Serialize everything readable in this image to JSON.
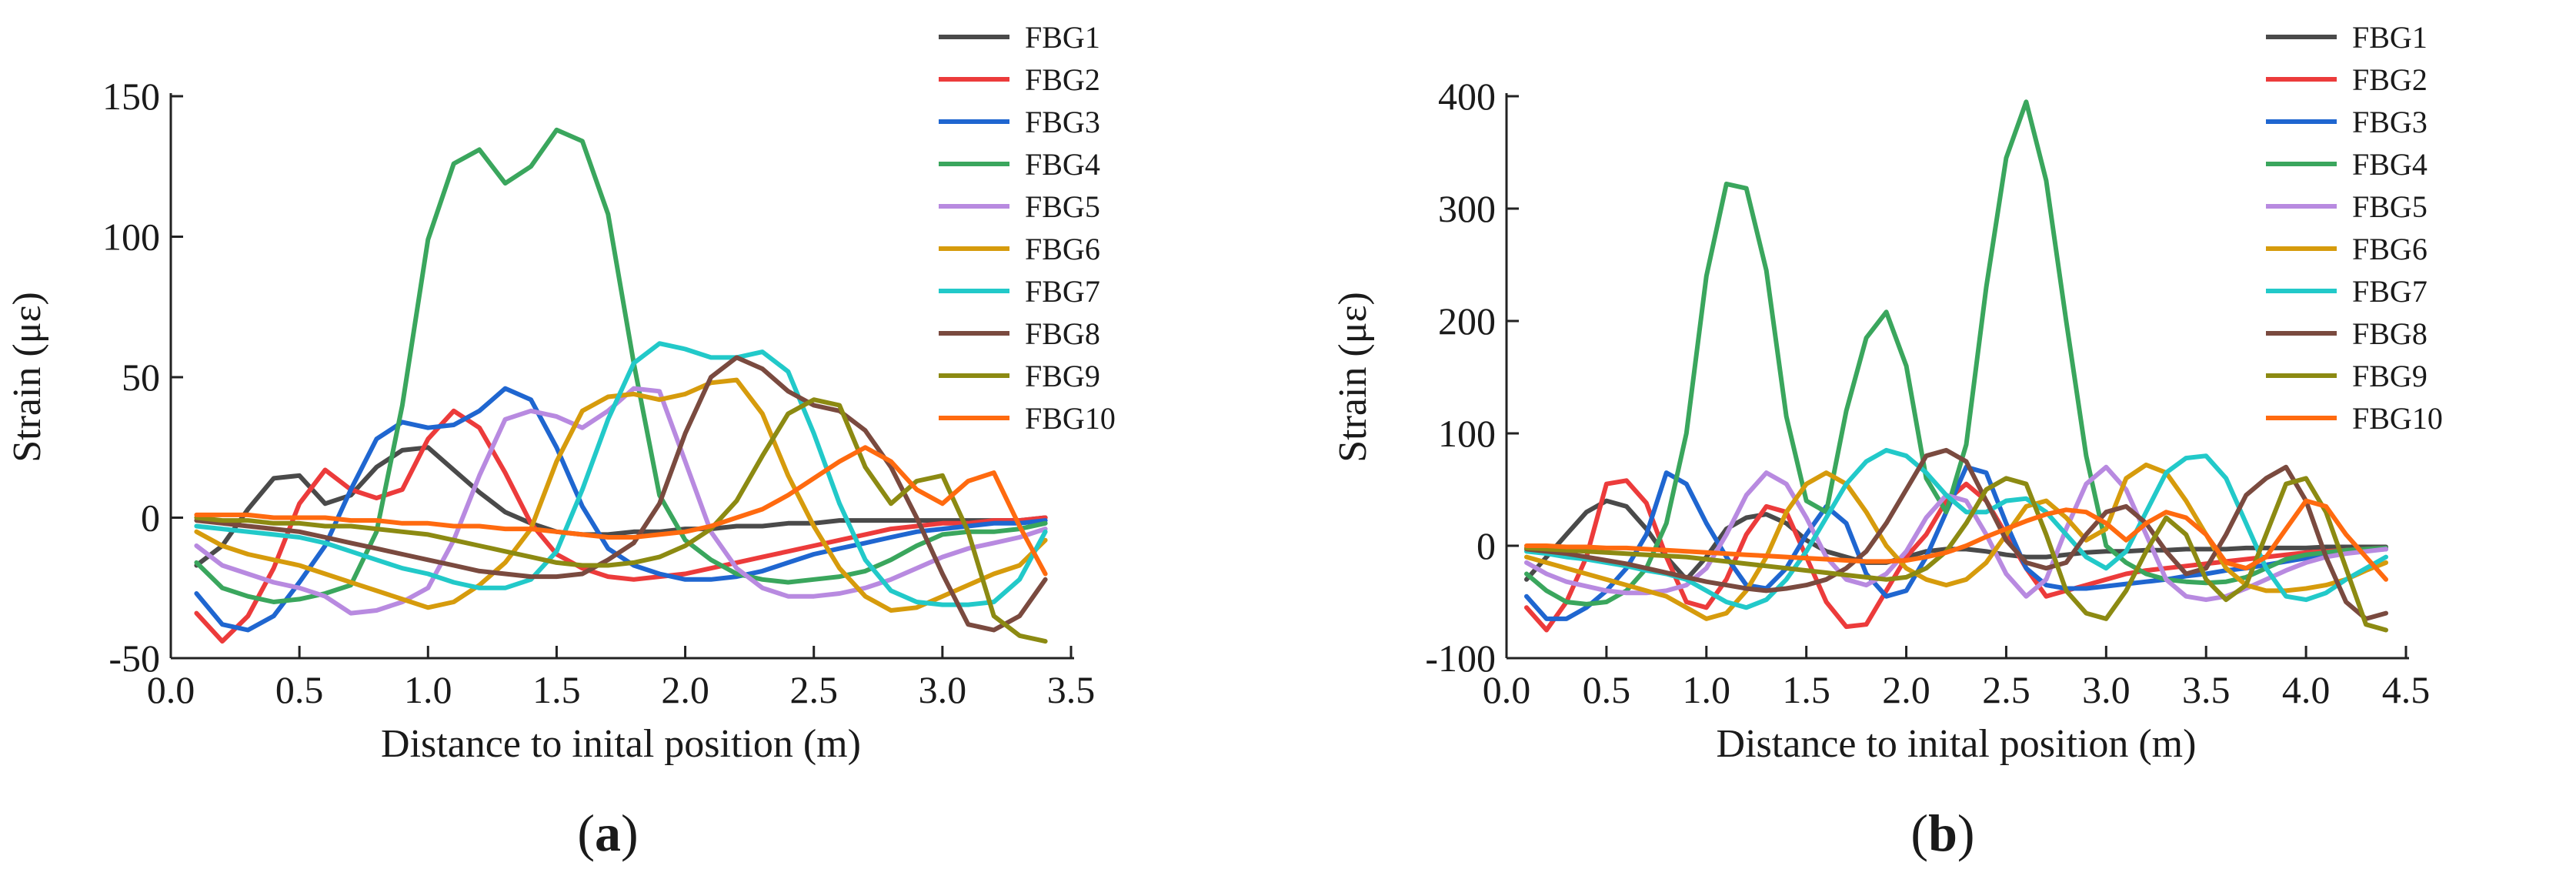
{
  "series_colors": {
    "FBG1": "#4a4a4a",
    "FBG2": "#ec3b3b",
    "FBG3": "#1f66d0",
    "FBG4": "#3aa65d",
    "FBG5": "#b88ae0",
    "FBG6": "#d69b0c",
    "FBG7": "#22c9c9",
    "FBG8": "#7a4a3f",
    "FBG9": "#8c8a12",
    "FBG10": "#ff6a0f"
  },
  "chart_data": [
    {
      "type": "line",
      "panel_label": "(a)",
      "panel_letter": "a",
      "title": "",
      "xlabel": "Distance to inital position (m)",
      "ylabel": "Strain (με)",
      "xlim": [
        0.0,
        3.5
      ],
      "ylim": [
        -50,
        150
      ],
      "xticks": [
        "0.0",
        "0.5",
        "1.0",
        "1.5",
        "2.0",
        "2.5",
        "3.0",
        "3.5"
      ],
      "yticks": [
        "-50",
        "0",
        "50",
        "100",
        "150"
      ],
      "grid": false,
      "legend_position": "top-right outside",
      "x": [
        0.1,
        0.2,
        0.3,
        0.4,
        0.5,
        0.6,
        0.7,
        0.8,
        0.9,
        1.0,
        1.1,
        1.2,
        1.3,
        1.4,
        1.5,
        1.6,
        1.7,
        1.8,
        1.9,
        2.0,
        2.1,
        2.2,
        2.3,
        2.4,
        2.5,
        2.6,
        2.7,
        2.8,
        2.9,
        3.0,
        3.1,
        3.2,
        3.3,
        3.4
      ],
      "series": [
        {
          "name": "FBG1",
          "values": [
            -17,
            -10,
            3,
            14,
            15,
            5,
            8,
            18,
            24,
            25,
            17,
            9,
            2,
            -2,
            -5,
            -6,
            -6,
            -5,
            -5,
            -4,
            -4,
            -3,
            -3,
            -2,
            -2,
            -1,
            -1,
            -1,
            -1,
            -1,
            -1,
            -1,
            -1,
            0
          ]
        },
        {
          "name": "FBG2",
          "values": [
            -34,
            -44,
            -35,
            -18,
            5,
            17,
            10,
            7,
            10,
            28,
            38,
            32,
            16,
            -2,
            -13,
            -18,
            -21,
            -22,
            -21,
            -20,
            -18,
            -16,
            -14,
            -12,
            -10,
            -8,
            -6,
            -4,
            -3,
            -2,
            -2,
            -1,
            -1,
            0
          ]
        },
        {
          "name": "FBG3",
          "values": [
            -27,
            -38,
            -40,
            -35,
            -23,
            -10,
            10,
            28,
            34,
            32,
            33,
            38,
            46,
            42,
            25,
            4,
            -11,
            -17,
            -20,
            -22,
            -22,
            -21,
            -19,
            -16,
            -13,
            -11,
            -9,
            -7,
            -5,
            -4,
            -3,
            -2,
            -2,
            -1
          ]
        },
        {
          "name": "FBG4",
          "values": [
            -16,
            -25,
            -28,
            -30,
            -29,
            -27,
            -24,
            -5,
            40,
            99,
            126,
            131,
            119,
            125,
            138,
            134,
            108,
            55,
            8,
            -8,
            -15,
            -20,
            -22,
            -23,
            -22,
            -21,
            -19,
            -15,
            -10,
            -6,
            -5,
            -5,
            -4,
            -2
          ]
        },
        {
          "name": "FBG5",
          "values": [
            -10,
            -17,
            -20,
            -23,
            -25,
            -28,
            -34,
            -33,
            -30,
            -25,
            -8,
            15,
            35,
            38,
            36,
            32,
            38,
            46,
            45,
            20,
            -5,
            -18,
            -25,
            -28,
            -28,
            -27,
            -25,
            -22,
            -18,
            -14,
            -11,
            -9,
            -7,
            -4
          ]
        },
        {
          "name": "FBG6",
          "values": [
            -5,
            -10,
            -13,
            -15,
            -17,
            -20,
            -23,
            -26,
            -29,
            -32,
            -30,
            -24,
            -16,
            -4,
            20,
            38,
            43,
            44,
            42,
            44,
            48,
            49,
            37,
            15,
            -3,
            -18,
            -28,
            -33,
            -32,
            -28,
            -24,
            -20,
            -17,
            -8
          ]
        },
        {
          "name": "FBG7",
          "values": [
            -3,
            -4,
            -5,
            -6,
            -7,
            -9,
            -12,
            -15,
            -18,
            -20,
            -23,
            -25,
            -25,
            -22,
            -12,
            10,
            35,
            55,
            62,
            60,
            57,
            57,
            59,
            52,
            30,
            5,
            -15,
            -26,
            -30,
            -31,
            -31,
            -30,
            -22,
            -5
          ]
        },
        {
          "name": "FBG8",
          "values": [
            -1,
            -2,
            -3,
            -4,
            -5,
            -7,
            -9,
            -11,
            -13,
            -15,
            -17,
            -19,
            -20,
            -21,
            -21,
            -20,
            -15,
            -9,
            5,
            30,
            50,
            57,
            53,
            45,
            40,
            38,
            31,
            18,
            0,
            -20,
            -38,
            -40,
            -35,
            -22
          ]
        },
        {
          "name": "FBG9",
          "values": [
            0,
            -1,
            -1,
            -2,
            -2,
            -3,
            -3,
            -4,
            -5,
            -6,
            -8,
            -10,
            -12,
            -14,
            -16,
            -17,
            -17,
            -16,
            -14,
            -10,
            -4,
            6,
            22,
            37,
            42,
            40,
            18,
            5,
            13,
            15,
            -5,
            -35,
            -42,
            -44
          ]
        },
        {
          "name": "FBG10",
          "values": [
            1,
            1,
            1,
            0,
            0,
            0,
            -1,
            -1,
            -2,
            -2,
            -3,
            -3,
            -4,
            -4,
            -5,
            -6,
            -7,
            -7,
            -6,
            -5,
            -3,
            0,
            3,
            8,
            14,
            20,
            25,
            20,
            10,
            5,
            13,
            16,
            -3,
            -20
          ]
        }
      ]
    },
    {
      "type": "line",
      "panel_label": "(b)",
      "panel_letter": "b",
      "title": "",
      "xlabel": "Distance to inital position (m)",
      "ylabel": "Strain (με)",
      "xlim": [
        0.0,
        4.5
      ],
      "ylim": [
        -100,
        400
      ],
      "xticks": [
        "0.0",
        "0.5",
        "1.0",
        "1.5",
        "2.0",
        "2.5",
        "3.0",
        "3.5",
        "4.0",
        "4.5"
      ],
      "yticks": [
        "-100",
        "0",
        "100",
        "200",
        "300",
        "400"
      ],
      "grid": false,
      "legend_position": "top-right outside",
      "x": [
        0.1,
        0.2,
        0.3,
        0.4,
        0.5,
        0.6,
        0.7,
        0.8,
        0.9,
        1.0,
        1.1,
        1.2,
        1.3,
        1.4,
        1.5,
        1.6,
        1.7,
        1.8,
        1.9,
        2.0,
        2.1,
        2.2,
        2.3,
        2.4,
        2.5,
        2.6,
        2.7,
        2.8,
        2.9,
        3.0,
        3.1,
        3.2,
        3.3,
        3.4,
        3.5,
        3.6,
        3.7,
        3.8,
        3.9,
        4.0,
        4.1,
        4.2,
        4.3,
        4.4
      ],
      "series": [
        {
          "name": "FBG1",
          "values": [
            -30,
            -10,
            10,
            30,
            40,
            35,
            15,
            -10,
            -30,
            -10,
            15,
            25,
            28,
            20,
            5,
            -5,
            -10,
            -15,
            -15,
            -10,
            -5,
            -3,
            -3,
            -5,
            -8,
            -10,
            -10,
            -8,
            -6,
            -5,
            -5,
            -4,
            -4,
            -3,
            -3,
            -3,
            -2,
            -2,
            -2,
            -2,
            -1,
            -1,
            -1,
            -1
          ]
        },
        {
          "name": "FBG2",
          "values": [
            -55,
            -75,
            -50,
            -10,
            55,
            58,
            38,
            -10,
            -50,
            -55,
            -30,
            10,
            35,
            30,
            -10,
            -50,
            -72,
            -70,
            -40,
            -10,
            10,
            40,
            55,
            40,
            10,
            -20,
            -45,
            -40,
            -35,
            -30,
            -25,
            -22,
            -20,
            -18,
            -16,
            -14,
            -12,
            -10,
            -8,
            -6,
            -5,
            -4,
            -3,
            -2
          ]
        },
        {
          "name": "FBG3",
          "values": [
            -45,
            -65,
            -65,
            -55,
            -40,
            -20,
            10,
            65,
            55,
            20,
            -10,
            -35,
            -38,
            -20,
            10,
            35,
            20,
            -25,
            -45,
            -40,
            -10,
            30,
            70,
            65,
            20,
            -20,
            -35,
            -38,
            -38,
            -36,
            -34,
            -32,
            -30,
            -27,
            -25,
            -22,
            -20,
            -17,
            -14,
            -11,
            -8,
            -6,
            -4,
            -3
          ]
        },
        {
          "name": "FBG4",
          "values": [
            -25,
            -40,
            -50,
            -52,
            -50,
            -40,
            -20,
            20,
            100,
            240,
            322,
            318,
            245,
            115,
            40,
            30,
            120,
            185,
            208,
            160,
            60,
            30,
            90,
            230,
            345,
            395,
            325,
            200,
            80,
            0,
            -15,
            -25,
            -30,
            -32,
            -33,
            -32,
            -28,
            -20,
            -12,
            -8,
            -6,
            -4,
            -3,
            -2
          ]
        },
        {
          "name": "FBG5",
          "values": [
            -15,
            -25,
            -32,
            -36,
            -40,
            -42,
            -42,
            -40,
            -35,
            -20,
            10,
            45,
            65,
            55,
            25,
            -10,
            -30,
            -35,
            -25,
            -5,
            25,
            45,
            40,
            10,
            -25,
            -45,
            -30,
            15,
            55,
            70,
            50,
            10,
            -30,
            -45,
            -48,
            -45,
            -38,
            -30,
            -22,
            -15,
            -10,
            -7,
            -5,
            -3
          ]
        },
        {
          "name": "FBG6",
          "values": [
            -10,
            -15,
            -20,
            -25,
            -30,
            -35,
            -40,
            -45,
            -55,
            -65,
            -60,
            -40,
            -10,
            30,
            55,
            65,
            55,
            30,
            0,
            -20,
            -30,
            -35,
            -30,
            -15,
            10,
            35,
            40,
            25,
            5,
            15,
            60,
            72,
            65,
            40,
            10,
            -20,
            -35,
            -40,
            -40,
            -38,
            -35,
            -30,
            -22,
            -15
          ]
        },
        {
          "name": "FBG7",
          "values": [
            -5,
            -7,
            -10,
            -12,
            -15,
            -18,
            -22,
            -25,
            -30,
            -40,
            -50,
            -55,
            -48,
            -30,
            -5,
            25,
            55,
            75,
            85,
            80,
            65,
            45,
            30,
            30,
            40,
            42,
            30,
            10,
            -10,
            -20,
            -5,
            30,
            65,
            78,
            80,
            60,
            20,
            -20,
            -45,
            -48,
            -42,
            -30,
            -20,
            -10
          ]
        },
        {
          "name": "FBG8",
          "values": [
            -3,
            -5,
            -7,
            -10,
            -13,
            -16,
            -20,
            -24,
            -28,
            -32,
            -35,
            -38,
            -40,
            -38,
            -35,
            -30,
            -20,
            -5,
            20,
            50,
            80,
            85,
            75,
            40,
            5,
            -15,
            -20,
            -15,
            10,
            30,
            35,
            20,
            -5,
            -25,
            -20,
            10,
            45,
            60,
            70,
            40,
            -10,
            -50,
            -65,
            -60
          ]
        },
        {
          "name": "FBG9",
          "values": [
            -2,
            -3,
            -4,
            -5,
            -6,
            -7,
            -8,
            -9,
            -10,
            -12,
            -14,
            -16,
            -18,
            -20,
            -22,
            -24,
            -26,
            -28,
            -30,
            -28,
            -20,
            -5,
            20,
            50,
            60,
            55,
            10,
            -40,
            -60,
            -65,
            -40,
            -5,
            25,
            10,
            -30,
            -48,
            -35,
            10,
            55,
            60,
            30,
            -20,
            -70,
            -75
          ]
        },
        {
          "name": "FBG10",
          "values": [
            0,
            0,
            -1,
            -1,
            -2,
            -2,
            -3,
            -4,
            -5,
            -6,
            -7,
            -8,
            -9,
            -10,
            -11,
            -12,
            -13,
            -14,
            -14,
            -13,
            -10,
            -6,
            0,
            8,
            15,
            22,
            28,
            32,
            30,
            20,
            5,
            20,
            30,
            25,
            10,
            -15,
            -20,
            -10,
            15,
            40,
            35,
            10,
            -10,
            -30
          ]
        }
      ]
    }
  ]
}
